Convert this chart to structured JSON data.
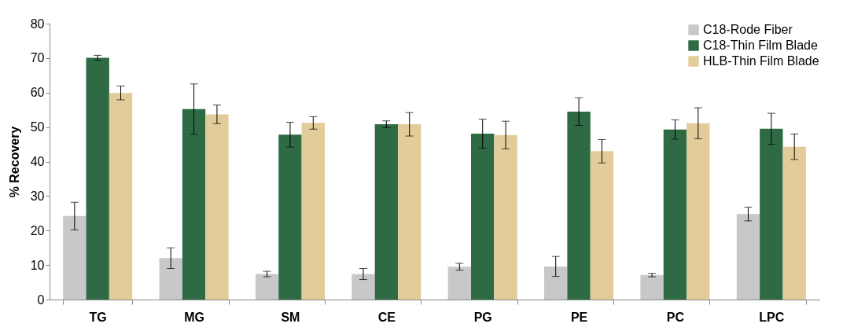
{
  "chart_data": {
    "type": "bar",
    "ylabel": "% Recovery",
    "categories": [
      "TG",
      "MG",
      "SM",
      "CE",
      "PG",
      "PE",
      "PC",
      "LPC"
    ],
    "series": [
      {
        "name": "C18-Rode Fiber",
        "color": "#c8c8c8",
        "values": [
          24.2,
          12.0,
          7.4,
          7.4,
          9.5,
          9.6,
          7.1,
          24.8
        ],
        "errors": [
          4.0,
          3.0,
          0.8,
          1.6,
          1.0,
          2.9,
          0.5,
          2.0
        ]
      },
      {
        "name": "C18-Thin Film Blade",
        "color": "#2e6b44",
        "values": [
          70.1,
          55.2,
          47.8,
          50.8,
          48.1,
          54.5,
          49.3,
          49.5
        ],
        "errors": [
          0.7,
          7.3,
          3.6,
          1.0,
          4.2,
          4.0,
          2.8,
          4.5
        ]
      },
      {
        "name": "HLB-Thin Film Blade",
        "color": "#e2cc9a",
        "values": [
          59.9,
          53.7,
          51.2,
          50.8,
          47.7,
          43.0,
          51.1,
          44.3
        ],
        "errors": [
          2.0,
          2.7,
          1.8,
          3.4,
          4.0,
          3.4,
          4.5,
          3.7
        ]
      }
    ],
    "ylim": [
      0,
      80
    ],
    "yticks": [
      0,
      10,
      20,
      30,
      40,
      50,
      60,
      70,
      80
    ],
    "grid": false,
    "legend": "top right"
  }
}
